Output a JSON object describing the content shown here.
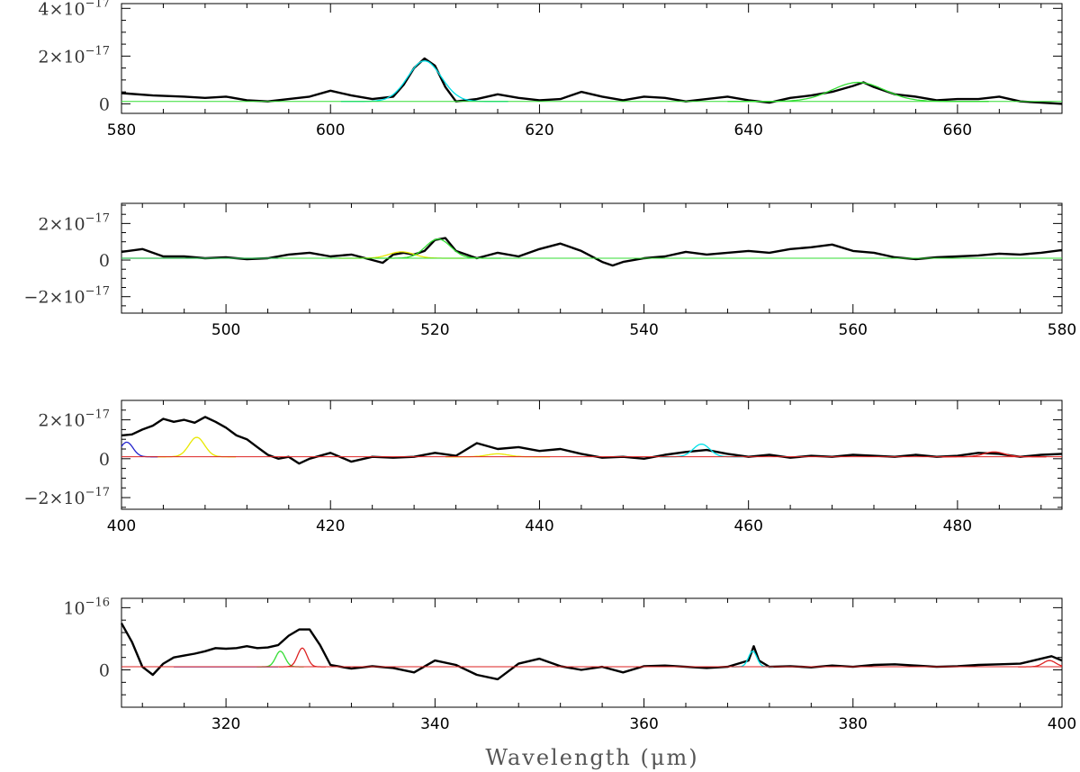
{
  "xlabel": "Wavelength (μm)",
  "chart_data": [
    {
      "type": "line",
      "xlim": [
        580,
        670
      ],
      "ylim": [
        -0.4,
        4.2
      ],
      "y_unit_exponent": -17,
      "xticks": [
        "580",
        "600",
        "620",
        "640",
        "660"
      ],
      "xtick_values": [
        580,
        600,
        620,
        640,
        660
      ],
      "yticks": [
        {
          "value": 4,
          "mantissa": "4×10",
          "exp": "−17"
        },
        {
          "value": 2,
          "mantissa": "2×10",
          "exp": "−17"
        },
        {
          "value": 0,
          "mantissa": "0",
          "exp": ""
        }
      ],
      "baseline": 0.1,
      "series": [
        {
          "kind": "data",
          "color": "#000000",
          "x": [
            580,
            583,
            586,
            588,
            590,
            592,
            594,
            596,
            598,
            600,
            602,
            604,
            606,
            607,
            608,
            609,
            610,
            611,
            612,
            614,
            616,
            618,
            620,
            622,
            624,
            626,
            628,
            630,
            632,
            634,
            636,
            638,
            640,
            642,
            644,
            646,
            648,
            650,
            651,
            652,
            654,
            656,
            658,
            660,
            662,
            664,
            666,
            668,
            670
          ],
          "y": [
            0.45,
            0.35,
            0.3,
            0.25,
            0.3,
            0.15,
            0.1,
            0.2,
            0.3,
            0.55,
            0.35,
            0.2,
            0.3,
            0.8,
            1.5,
            1.9,
            1.6,
            0.7,
            0.1,
            0.2,
            0.4,
            0.25,
            0.15,
            0.2,
            0.5,
            0.3,
            0.15,
            0.3,
            0.25,
            0.1,
            0.2,
            0.3,
            0.15,
            0.05,
            0.25,
            0.35,
            0.5,
            0.75,
            0.9,
            0.7,
            0.4,
            0.3,
            0.15,
            0.2,
            0.2,
            0.3,
            0.1,
            0.05,
            0.0
          ]
        },
        {
          "kind": "gaussian",
          "name": "",
          "color": "#00e0e8",
          "center": 609,
          "amp": 1.7,
          "sigma": 1.6
        },
        {
          "kind": "gaussian",
          "name": "",
          "color": "#33dd33",
          "center": 650.5,
          "amp": 0.8,
          "sigma": 2.5
        }
      ]
    },
    {
      "type": "line",
      "xlim": [
        490,
        580
      ],
      "ylim": [
        -2.9,
        3.1
      ],
      "y_unit_exponent": -17,
      "xticks": [
        "500",
        "520",
        "540",
        "560",
        "580"
      ],
      "xtick_values": [
        500,
        520,
        540,
        560,
        580
      ],
      "yticks": [
        {
          "value": 2,
          "mantissa": "2×10",
          "exp": "−17"
        },
        {
          "value": 0,
          "mantissa": "0",
          "exp": ""
        },
        {
          "value": -2,
          "mantissa": "−2×10",
          "exp": "−17"
        }
      ],
      "baseline": 0.1,
      "series": [
        {
          "kind": "data",
          "color": "#000000",
          "x": [
            490,
            492,
            494,
            496,
            498,
            500,
            502,
            504,
            506,
            508,
            510,
            512,
            514,
            515,
            516,
            517,
            518,
            519,
            520,
            521,
            522,
            524,
            526,
            528,
            530,
            532,
            534,
            536,
            537,
            538,
            540,
            542,
            544,
            546,
            548,
            550,
            552,
            554,
            556,
            558,
            560,
            562,
            564,
            566,
            568,
            570,
            572,
            574,
            576,
            578,
            580
          ],
          "y": [
            0.45,
            0.6,
            0.2,
            0.2,
            0.1,
            0.15,
            0.05,
            0.1,
            0.3,
            0.4,
            0.2,
            0.3,
            0.0,
            -0.15,
            0.3,
            0.4,
            0.3,
            0.5,
            1.1,
            1.2,
            0.5,
            0.1,
            0.4,
            0.2,
            0.6,
            0.9,
            0.5,
            -0.1,
            -0.3,
            -0.1,
            0.1,
            0.2,
            0.45,
            0.3,
            0.4,
            0.5,
            0.4,
            0.6,
            0.7,
            0.85,
            0.5,
            0.4,
            0.15,
            0.05,
            0.15,
            0.2,
            0.25,
            0.35,
            0.3,
            0.4,
            0.55
          ]
        },
        {
          "kind": "gaussian",
          "name": "",
          "color": "#2222cc",
          "center": 495,
          "amp": 0.0,
          "sigma": 2.0
        },
        {
          "kind": "gaussian",
          "name": "",
          "color": "#e8e800",
          "center": 516.8,
          "amp": 0.35,
          "sigma": 1.2
        },
        {
          "kind": "gaussian",
          "name": "",
          "color": "#33dd33",
          "center": 520.3,
          "amp": 1.05,
          "sigma": 1.2
        }
      ]
    },
    {
      "type": "line",
      "xlim": [
        400,
        490
      ],
      "ylim": [
        -2.6,
        3.0
      ],
      "y_unit_exponent": -17,
      "xticks": [
        "400",
        "420",
        "440",
        "460",
        "480"
      ],
      "xtick_values": [
        400,
        420,
        440,
        460,
        480
      ],
      "yticks": [
        {
          "value": 2,
          "mantissa": "2×10",
          "exp": "−17"
        },
        {
          "value": 0,
          "mantissa": "0",
          "exp": ""
        },
        {
          "value": -2,
          "mantissa": "−2×10",
          "exp": "−17"
        }
      ],
      "baseline": 0.1,
      "series": [
        {
          "kind": "data",
          "color": "#000000",
          "x": [
            400,
            401,
            402,
            403,
            404,
            405,
            406,
            407,
            408,
            409,
            410,
            411,
            412,
            413,
            414,
            415,
            416,
            417,
            418,
            420,
            422,
            424,
            426,
            428,
            430,
            432,
            434,
            436,
            438,
            440,
            442,
            444,
            446,
            448,
            450,
            452,
            454,
            456,
            458,
            460,
            462,
            464,
            466,
            468,
            470,
            472,
            474,
            476,
            478,
            480,
            482,
            484,
            486,
            488,
            490
          ],
          "y": [
            1.2,
            1.25,
            1.5,
            1.7,
            2.05,
            1.9,
            2.0,
            1.85,
            2.15,
            1.9,
            1.6,
            1.2,
            1.0,
            0.6,
            0.2,
            0.0,
            0.1,
            -0.25,
            0.0,
            0.3,
            -0.15,
            0.1,
            0.05,
            0.1,
            0.3,
            0.15,
            0.8,
            0.5,
            0.6,
            0.4,
            0.5,
            0.25,
            0.05,
            0.1,
            0.0,
            0.2,
            0.35,
            0.45,
            0.25,
            0.1,
            0.2,
            0.05,
            0.15,
            0.1,
            0.2,
            0.15,
            0.1,
            0.2,
            0.1,
            0.15,
            0.3,
            0.25,
            0.1,
            0.2,
            0.25
          ]
        },
        {
          "kind": "gaussian",
          "name": "",
          "color": "#2222cc",
          "center": 400.5,
          "amp": 0.75,
          "sigma": 0.6
        },
        {
          "kind": "gaussian",
          "name": "",
          "color": "#e8e800",
          "center": 407.2,
          "amp": 1.0,
          "sigma": 0.75
        },
        {
          "kind": "gaussian",
          "name": "",
          "color": "#e8e800",
          "center": 436.0,
          "amp": 0.15,
          "sigma": 1.0
        },
        {
          "kind": "gaussian",
          "name": "",
          "color": "#00e0e8",
          "center": 455.5,
          "amp": 0.65,
          "sigma": 0.8
        },
        {
          "kind": "gaussian",
          "name": "",
          "color": "#dd2222",
          "center": 483.5,
          "amp": 0.25,
          "sigma": 1.0
        }
      ]
    },
    {
      "type": "line",
      "xlim": [
        310,
        400
      ],
      "ylim": [
        -6.0,
        11.5
      ],
      "y_unit_exponent": -16,
      "xticks": [
        "320",
        "340",
        "360",
        "380",
        "400"
      ],
      "xtick_values": [
        320,
        340,
        360,
        380,
        400
      ],
      "yticks": [
        {
          "value": 10,
          "mantissa": "10",
          "exp": "−16"
        },
        {
          "value": 0,
          "mantissa": "0",
          "exp": ""
        }
      ],
      "baseline": 0.5,
      "series": [
        {
          "kind": "data",
          "color": "#000000",
          "x": [
            310,
            311,
            312,
            313,
            314,
            315,
            316,
            317,
            318,
            319,
            320,
            321,
            322,
            323,
            324,
            325,
            326,
            327,
            328,
            329,
            330,
            331,
            332,
            334,
            336,
            338,
            340,
            342,
            344,
            346,
            348,
            350,
            352,
            354,
            356,
            358,
            360,
            362,
            364,
            366,
            368,
            370,
            370.5,
            371,
            372,
            374,
            376,
            378,
            380,
            382,
            384,
            386,
            388,
            390,
            392,
            394,
            396,
            398,
            399,
            400
          ],
          "y": [
            7.5,
            4.5,
            0.5,
            -0.8,
            1.0,
            2.0,
            2.3,
            2.6,
            3.0,
            3.5,
            3.4,
            3.5,
            3.8,
            3.5,
            3.6,
            4.0,
            5.5,
            6.5,
            6.5,
            4.0,
            0.8,
            0.5,
            0.2,
            0.6,
            0.3,
            -0.4,
            1.5,
            0.8,
            -0.8,
            -1.5,
            1.0,
            1.8,
            0.6,
            0.0,
            0.5,
            -0.4,
            0.6,
            0.7,
            0.5,
            0.3,
            0.5,
            1.5,
            3.8,
            1.5,
            0.5,
            0.6,
            0.4,
            0.7,
            0.5,
            0.8,
            0.9,
            0.7,
            0.5,
            0.6,
            0.8,
            0.9,
            1.0,
            1.8,
            2.2,
            1.5
          ]
        },
        {
          "kind": "gaussian",
          "name": "",
          "color": "#2222cc",
          "center": 320,
          "amp": 0.0,
          "sigma": 1.0
        },
        {
          "kind": "gaussian",
          "name": "",
          "color": "#33dd33",
          "center": 325.2,
          "amp": 2.5,
          "sigma": 0.45
        },
        {
          "kind": "gaussian",
          "name": "",
          "color": "#dd2222",
          "center": 327.3,
          "amp": 3.0,
          "sigma": 0.45
        },
        {
          "kind": "gaussian",
          "name": "",
          "color": "#00e0e8",
          "center": 370.4,
          "amp": 2.5,
          "sigma": 0.4
        },
        {
          "kind": "gaussian",
          "name": "",
          "color": "#dd2222",
          "center": 398.8,
          "amp": 1.0,
          "sigma": 0.6
        }
      ]
    }
  ]
}
